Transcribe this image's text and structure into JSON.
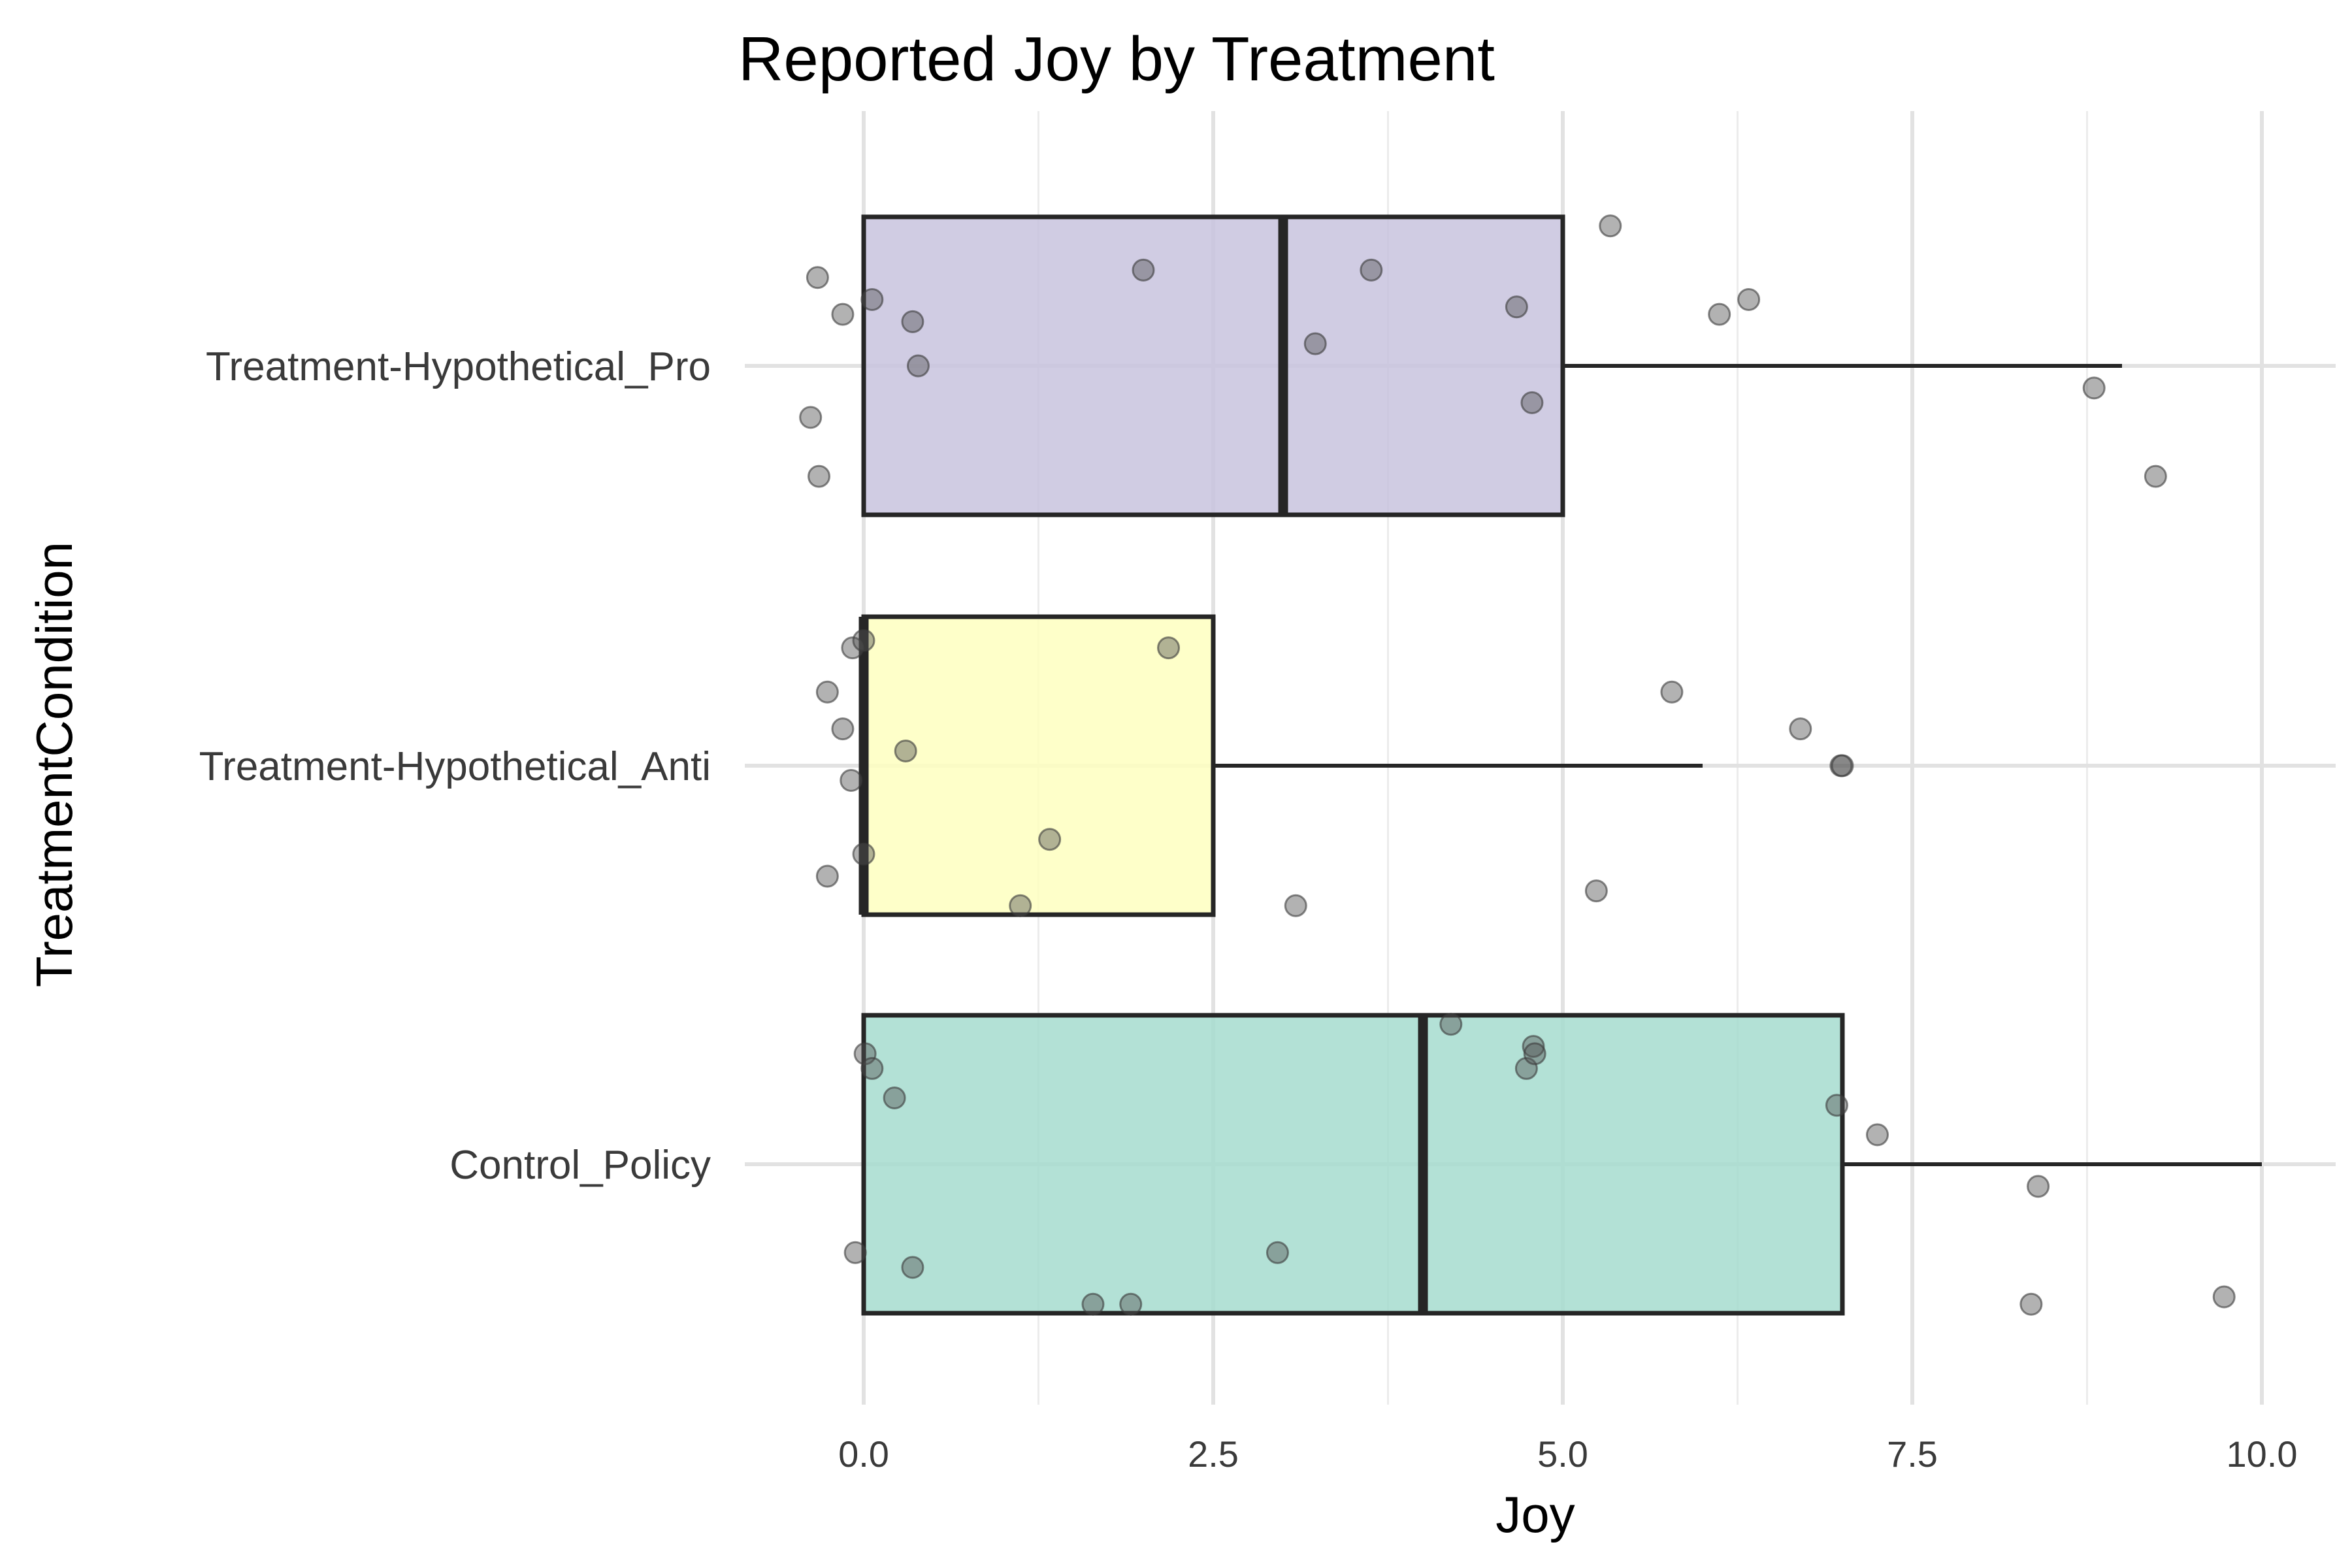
{
  "chart_data": {
    "type": "boxplot",
    "title": "Reported Joy by Treatment",
    "xlabel": "Joy",
    "ylabel": "TreatmentCondition",
    "xlim": [
      -0.35,
      10.2
    ],
    "x_ticks": [
      0,
      2.5,
      5,
      7.5,
      10
    ],
    "x_tick_labels": [
      "0.0",
      "2.5",
      "5.0",
      "7.5",
      "10.0"
    ],
    "grid": true,
    "legend": "none",
    "categories": [
      "Treatment-Hypothetical_Pro",
      "Treatment-Hypothetical_Anti",
      "Control_Policy"
    ],
    "boxes": [
      {
        "category": "Treatment-Hypothetical_Pro",
        "q1": 0,
        "median": 3,
        "q3": 5,
        "whisker_low": 0,
        "whisker_high": 9,
        "color": "#c8c3de",
        "points": [
          [
            -0.33,
            0.12
          ],
          [
            -0.15,
            0.07
          ],
          [
            0.06,
            0.09
          ],
          [
            0.35,
            0.06
          ],
          [
            0.39,
            0.0
          ],
          [
            2.0,
            0.13
          ],
          [
            3.23,
            0.03
          ],
          [
            3.63,
            0.13
          ],
          [
            4.67,
            0.08
          ],
          [
            4.78,
            -0.05
          ],
          [
            5.34,
            0.19
          ],
          [
            6.12,
            0.07
          ],
          [
            6.33,
            0.09
          ],
          [
            -0.38,
            -0.07
          ],
          [
            -0.32,
            -0.15
          ],
          [
            8.8,
            -0.03
          ],
          [
            9.24,
            -0.15
          ]
        ]
      },
      {
        "category": "Treatment-Hypothetical_Anti",
        "q1": 0,
        "median": 0,
        "q3": 2.5,
        "whisker_low": 0,
        "whisker_high": 6,
        "color": "#feffc0",
        "points": [
          [
            -0.08,
            0.16
          ],
          [
            0.0,
            0.17
          ],
          [
            2.18,
            0.16
          ],
          [
            -0.26,
            0.1
          ],
          [
            -0.15,
            0.05
          ],
          [
            0.3,
            0.02
          ],
          [
            -0.09,
            -0.02
          ],
          [
            0.0,
            -0.12
          ],
          [
            1.33,
            -0.1
          ],
          [
            -0.26,
            -0.15
          ],
          [
            1.12,
            -0.19
          ],
          [
            3.09,
            -0.19
          ],
          [
            5.24,
            -0.17
          ],
          [
            5.78,
            0.1
          ],
          [
            6.7,
            0.05
          ],
          [
            6.99,
            0.0
          ],
          [
            7.0,
            0.0
          ]
        ]
      },
      {
        "category": "Control_Policy",
        "q1": 0,
        "median": 4,
        "q3": 7,
        "whisker_low": 0,
        "whisker_high": 10,
        "color": "#a6dccf",
        "points": [
          [
            0.01,
            0.15
          ],
          [
            0.06,
            0.13
          ],
          [
            0.22,
            0.09
          ],
          [
            4.2,
            0.19
          ],
          [
            4.74,
            0.13
          ],
          [
            4.79,
            0.16
          ],
          [
            4.8,
            0.15
          ],
          [
            6.96,
            0.08
          ],
          [
            7.25,
            0.04
          ],
          [
            8.4,
            -0.03
          ],
          [
            -0.06,
            -0.12
          ],
          [
            0.35,
            -0.14
          ],
          [
            1.64,
            -0.19
          ],
          [
            1.91,
            -0.19
          ],
          [
            2.96,
            -0.12
          ],
          [
            8.35,
            -0.19
          ],
          [
            9.73,
            -0.18
          ]
        ]
      }
    ]
  }
}
